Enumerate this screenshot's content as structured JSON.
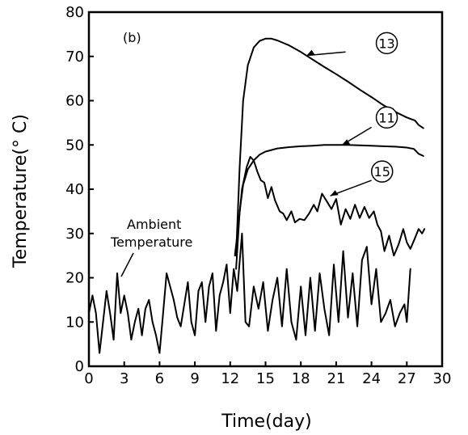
{
  "chart_data": {
    "type": "line",
    "panel_label": "(b)",
    "title": "",
    "xlabel": "Time(day)",
    "ylabel": "Temperature(° C)",
    "xlim": [
      0,
      30
    ],
    "ylim": [
      0,
      80
    ],
    "xticks": [
      0,
      3,
      6,
      9,
      12,
      15,
      18,
      21,
      24,
      27,
      30
    ],
    "yticks": [
      0,
      10,
      20,
      30,
      40,
      50,
      60,
      70,
      80
    ],
    "grid": false,
    "legend": "none",
    "annotations": {
      "ambient_line1": "Ambient",
      "ambient_line2": "Temperature"
    },
    "series": [
      {
        "name": "13",
        "values": [
          [
            12.5,
            25
          ],
          [
            12.8,
            45
          ],
          [
            13.1,
            60
          ],
          [
            13.5,
            68
          ],
          [
            14,
            72
          ],
          [
            14.5,
            73.5
          ],
          [
            15,
            74
          ],
          [
            15.5,
            74
          ],
          [
            16,
            73.6
          ],
          [
            17,
            72.5
          ],
          [
            18,
            71
          ],
          [
            19,
            69.3
          ],
          [
            20,
            67.6
          ],
          [
            21,
            66
          ],
          [
            22,
            64.3
          ],
          [
            23,
            62.5
          ],
          [
            24,
            60.8
          ],
          [
            25,
            59
          ],
          [
            26,
            57.5
          ],
          [
            27,
            56.2
          ],
          [
            27.7,
            55.5
          ],
          [
            28,
            54.5
          ],
          [
            28.4,
            53.8
          ]
        ]
      },
      {
        "name": "11",
        "values": [
          [
            12.5,
            22
          ],
          [
            12.8,
            35
          ],
          [
            13.1,
            41
          ],
          [
            13.5,
            44.5
          ],
          [
            14,
            46.5
          ],
          [
            14.5,
            47.8
          ],
          [
            15,
            48.5
          ],
          [
            16,
            49.2
          ],
          [
            17,
            49.5
          ],
          [
            18,
            49.7
          ],
          [
            19,
            49.8
          ],
          [
            20,
            50
          ],
          [
            21,
            50
          ],
          [
            22,
            50
          ],
          [
            23,
            49.9
          ],
          [
            24,
            49.8
          ],
          [
            25,
            49.7
          ],
          [
            26,
            49.6
          ],
          [
            27,
            49.4
          ],
          [
            27.6,
            49.1
          ],
          [
            28,
            48
          ],
          [
            28.4,
            47.5
          ]
        ]
      },
      {
        "name": "15",
        "values": [
          [
            12.4,
            25
          ],
          [
            12.7,
            32
          ],
          [
            13,
            40
          ],
          [
            13.4,
            45
          ],
          [
            13.7,
            47.3
          ],
          [
            14,
            46.5
          ],
          [
            14.3,
            44
          ],
          [
            14.6,
            42
          ],
          [
            14.9,
            41.5
          ],
          [
            15.2,
            38
          ],
          [
            15.5,
            40.5
          ],
          [
            15.8,
            37.5
          ],
          [
            16.2,
            35
          ],
          [
            16.5,
            34.5
          ],
          [
            16.8,
            33
          ],
          [
            17.2,
            35
          ],
          [
            17.5,
            32.5
          ],
          [
            17.9,
            33.3
          ],
          [
            18.3,
            33
          ],
          [
            18.7,
            34.5
          ],
          [
            19.1,
            36.5
          ],
          [
            19.4,
            35
          ],
          [
            19.8,
            39
          ],
          [
            20.2,
            37.3
          ],
          [
            20.6,
            35.5
          ],
          [
            21,
            37.8
          ],
          [
            21.4,
            32
          ],
          [
            21.8,
            35.5
          ],
          [
            22.2,
            33.3
          ],
          [
            22.6,
            36.5
          ],
          [
            23,
            33.5
          ],
          [
            23.4,
            36
          ],
          [
            23.8,
            33.5
          ],
          [
            24.2,
            35
          ],
          [
            24.5,
            32
          ],
          [
            24.8,
            30.5
          ],
          [
            25.1,
            26
          ],
          [
            25.5,
            29.5
          ],
          [
            25.9,
            25
          ],
          [
            26.3,
            27.5
          ],
          [
            26.7,
            31
          ],
          [
            27,
            28
          ],
          [
            27.3,
            26.5
          ],
          [
            27.7,
            29
          ],
          [
            28,
            31
          ],
          [
            28.3,
            30
          ],
          [
            28.5,
            31
          ]
        ]
      },
      {
        "name": "Ambient Temperature",
        "values": [
          [
            0,
            12
          ],
          [
            0.3,
            16
          ],
          [
            0.6,
            12
          ],
          [
            0.9,
            3
          ],
          [
            1.2,
            10
          ],
          [
            1.5,
            17
          ],
          [
            1.8,
            12
          ],
          [
            2.1,
            6
          ],
          [
            2.4,
            21
          ],
          [
            2.7,
            12
          ],
          [
            3,
            16
          ],
          [
            3.3,
            12
          ],
          [
            3.6,
            6
          ],
          [
            3.9,
            10
          ],
          [
            4.2,
            13
          ],
          [
            4.5,
            7
          ],
          [
            4.8,
            13
          ],
          [
            5.1,
            15
          ],
          [
            5.4,
            10
          ],
          [
            5.7,
            7
          ],
          [
            6,
            3
          ],
          [
            6.3,
            12
          ],
          [
            6.6,
            21
          ],
          [
            6.9,
            18
          ],
          [
            7.2,
            15
          ],
          [
            7.5,
            11
          ],
          [
            7.8,
            9
          ],
          [
            8.1,
            14
          ],
          [
            8.4,
            19
          ],
          [
            8.7,
            10
          ],
          [
            9,
            7
          ],
          [
            9.3,
            17
          ],
          [
            9.6,
            19
          ],
          [
            9.9,
            10
          ],
          [
            10.2,
            18
          ],
          [
            10.5,
            21
          ],
          [
            10.8,
            8
          ],
          [
            11.1,
            16
          ],
          [
            11.4,
            19
          ],
          [
            11.7,
            23
          ],
          [
            12,
            12
          ],
          [
            12.3,
            22
          ],
          [
            12.6,
            17
          ],
          [
            13,
            30
          ],
          [
            13.3,
            10
          ],
          [
            13.6,
            9
          ],
          [
            14,
            18
          ],
          [
            14.4,
            13
          ],
          [
            14.8,
            19
          ],
          [
            15.2,
            8
          ],
          [
            15.6,
            15
          ],
          [
            16,
            20
          ],
          [
            16.4,
            9
          ],
          [
            16.8,
            22
          ],
          [
            17.2,
            10
          ],
          [
            17.6,
            6
          ],
          [
            18,
            18
          ],
          [
            18.4,
            7
          ],
          [
            18.8,
            20
          ],
          [
            19.2,
            8
          ],
          [
            19.6,
            21
          ],
          [
            20,
            13
          ],
          [
            20.4,
            7
          ],
          [
            20.8,
            23
          ],
          [
            21.2,
            10
          ],
          [
            21.6,
            26
          ],
          [
            22,
            11
          ],
          [
            22.4,
            21
          ],
          [
            22.8,
            9
          ],
          [
            23.2,
            24
          ],
          [
            23.6,
            27
          ],
          [
            24,
            14
          ],
          [
            24.4,
            22
          ],
          [
            24.8,
            10
          ],
          [
            25.2,
            12
          ],
          [
            25.6,
            15
          ],
          [
            26,
            9
          ],
          [
            26.4,
            12
          ],
          [
            26.8,
            14
          ],
          [
            27,
            10
          ],
          [
            27.3,
            22
          ]
        ]
      }
    ]
  }
}
